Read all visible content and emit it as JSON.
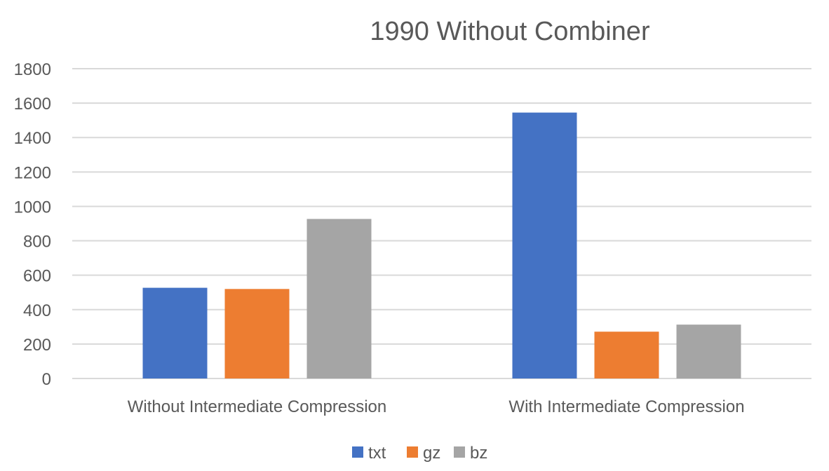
{
  "chart_data": {
    "type": "bar",
    "title": "1990 Without Combiner",
    "categories": [
      "Without Intermediate Compression",
      "With Intermediate Compression"
    ],
    "series": [
      {
        "name": "txt",
        "color": "#4472C4",
        "values": [
          527,
          1545
        ]
      },
      {
        "name": "gz",
        "color": "#ED7D31",
        "values": [
          520,
          272
        ]
      },
      {
        "name": "bz",
        "color": "#A5A5A5",
        "values": [
          927,
          313
        ]
      }
    ],
    "yticks": [
      "0",
      "200",
      "400",
      "600",
      "800",
      "1000",
      "1200",
      "1400",
      "1600",
      "1800"
    ],
    "ylim": [
      0,
      1800
    ],
    "grid": true,
    "legend_position": "bottom",
    "gridline_color": "#D9D9D9"
  }
}
